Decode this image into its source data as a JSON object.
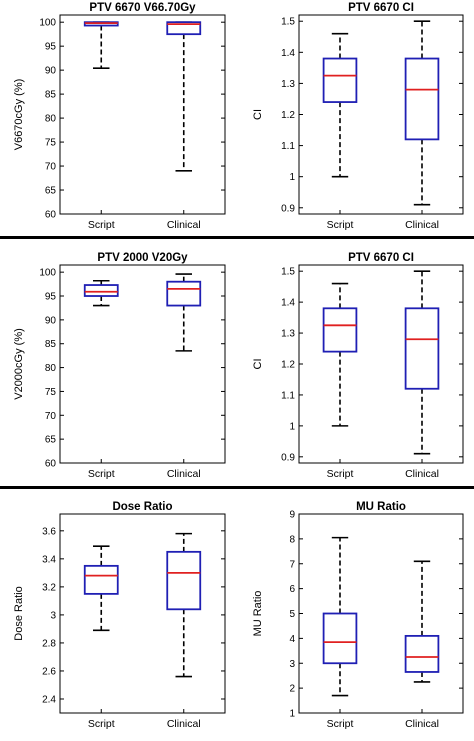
{
  "chart_data": [
    {
      "type": "box",
      "title": "PTV 6670 V66.70Gy",
      "ylabel": "V6670cGy (%)",
      "xlabel": "",
      "categories": [
        "Script",
        "Clinical"
      ],
      "ylim": [
        60,
        101.5
      ],
      "yticks": [
        60,
        65,
        70,
        75,
        80,
        85,
        90,
        95,
        100
      ],
      "tick_labels": [
        "60",
        "65",
        "70",
        "75",
        "80",
        "85",
        "90",
        "95",
        "100"
      ],
      "boxes": [
        {
          "category": "Script",
          "whisker_low": 90.4,
          "q1": 99.3,
          "median": 99.8,
          "q3": 100.0,
          "whisker_high": 100.0
        },
        {
          "category": "Clinical",
          "whisker_low": 69.0,
          "q1": 97.5,
          "median": 99.6,
          "q3": 100.0,
          "whisker_high": 100.0
        }
      ]
    },
    {
      "type": "box",
      "title": "PTV 6670 CI",
      "ylabel": "CI",
      "xlabel": "",
      "categories": [
        "Script",
        "Clinical"
      ],
      "ylim": [
        0.88,
        1.52
      ],
      "yticks": [
        0.9,
        1.0,
        1.1,
        1.2,
        1.3,
        1.4,
        1.5
      ],
      "tick_labels": [
        "0.9",
        "1",
        "1.1",
        "1.2",
        "1.3",
        "1.4",
        "1.5"
      ],
      "boxes": [
        {
          "category": "Script",
          "whisker_low": 1.0,
          "q1": 1.24,
          "median": 1.325,
          "q3": 1.38,
          "whisker_high": 1.46
        },
        {
          "category": "Clinical",
          "whisker_low": 0.91,
          "q1": 1.12,
          "median": 1.28,
          "q3": 1.38,
          "whisker_high": 1.5
        }
      ]
    },
    {
      "type": "box",
      "title": "PTV 2000 V20Gy",
      "ylabel": "V2000cGy (%)",
      "xlabel": "",
      "categories": [
        "Script",
        "Clinical"
      ],
      "ylim": [
        60,
        101.5
      ],
      "yticks": [
        60,
        65,
        70,
        75,
        80,
        85,
        90,
        95,
        100
      ],
      "tick_labels": [
        "60",
        "65",
        "70",
        "75",
        "80",
        "85",
        "90",
        "95",
        "100"
      ],
      "boxes": [
        {
          "category": "Script",
          "whisker_low": 93.0,
          "q1": 95.0,
          "median": 95.9,
          "q3": 97.3,
          "whisker_high": 98.2
        },
        {
          "category": "Clinical",
          "whisker_low": 83.5,
          "q1": 93.0,
          "median": 96.5,
          "q3": 98.0,
          "whisker_high": 99.6
        }
      ]
    },
    {
      "type": "box",
      "title": "PTV 6670 CI",
      "ylabel": "CI",
      "xlabel": "",
      "categories": [
        "Script",
        "Clinical"
      ],
      "ylim": [
        0.88,
        1.52
      ],
      "yticks": [
        0.9,
        1.0,
        1.1,
        1.2,
        1.3,
        1.4,
        1.5
      ],
      "tick_labels": [
        "0.9",
        "1",
        "1.1",
        "1.2",
        "1.3",
        "1.4",
        "1.5"
      ],
      "boxes": [
        {
          "category": "Script",
          "whisker_low": 1.0,
          "q1": 1.24,
          "median": 1.325,
          "q3": 1.38,
          "whisker_high": 1.46
        },
        {
          "category": "Clinical",
          "whisker_low": 0.91,
          "q1": 1.12,
          "median": 1.28,
          "q3": 1.38,
          "whisker_high": 1.5
        }
      ]
    },
    {
      "type": "box",
      "title": "Dose Ratio",
      "ylabel": "Dose Ratio",
      "xlabel": "",
      "categories": [
        "Script",
        "Clinical"
      ],
      "ylim": [
        2.3,
        3.72
      ],
      "yticks": [
        2.4,
        2.6,
        2.8,
        3.0,
        3.2,
        3.4,
        3.6
      ],
      "tick_labels": [
        "2.4",
        "2.6",
        "2.8",
        "3",
        "3.2",
        "3.4",
        "3.6"
      ],
      "boxes": [
        {
          "category": "Script",
          "whisker_low": 2.89,
          "q1": 3.15,
          "median": 3.28,
          "q3": 3.35,
          "whisker_high": 3.49
        },
        {
          "category": "Clinical",
          "whisker_low": 2.56,
          "q1": 3.04,
          "median": 3.3,
          "q3": 3.45,
          "whisker_high": 3.58
        }
      ]
    },
    {
      "type": "box",
      "title": "MU Ratio",
      "ylabel": "MU Ratio",
      "xlabel": "",
      "categories": [
        "Script",
        "Clinical"
      ],
      "ylim": [
        1,
        9
      ],
      "yticks": [
        1,
        2,
        3,
        4,
        5,
        6,
        7,
        8,
        9
      ],
      "tick_labels": [
        "1",
        "2",
        "3",
        "4",
        "5",
        "6",
        "7",
        "8",
        "9"
      ],
      "boxes": [
        {
          "category": "Script",
          "whisker_low": 1.7,
          "q1": 3.0,
          "median": 3.85,
          "q3": 5.0,
          "whisker_high": 8.05
        },
        {
          "category": "Clinical",
          "whisker_low": 2.25,
          "q1": 2.65,
          "median": 3.25,
          "q3": 4.1,
          "whisker_high": 7.1
        }
      ]
    }
  ],
  "colors": {
    "box": "#1f1fb4",
    "median": "#e02020",
    "whisker": "#000000",
    "divider": "#000000"
  }
}
